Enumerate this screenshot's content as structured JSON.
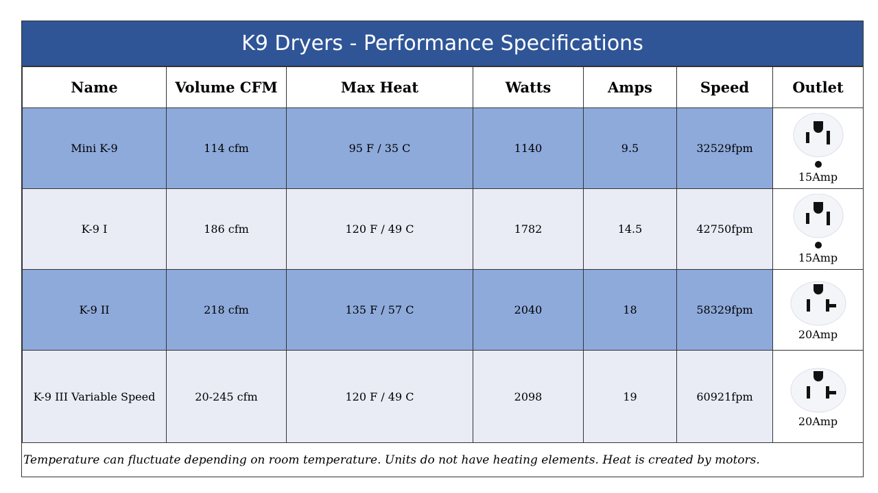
{
  "title": "K9 Dryers - Performance Specifications",
  "headers": [
    "Name",
    "Volume CFM",
    "Max Heat",
    "Watts",
    "Amps",
    "Speed",
    "Outlet"
  ],
  "rows": [
    {
      "name": "Mini K-9",
      "cfm": "114 cfm",
      "heat": "95 F / 35 C",
      "watts": "1140",
      "amps": "9.5",
      "speed": "32529fpm",
      "outlet": "15Amp",
      "outlet_icon": "15-amp-outlet-icon"
    },
    {
      "name": "K-9 I",
      "cfm": "186 cfm",
      "heat": "120 F / 49 C",
      "watts": "1782",
      "amps": "14.5",
      "speed": "42750fpm",
      "outlet": "15Amp",
      "outlet_icon": "15-amp-outlet-icon"
    },
    {
      "name": "K-9 II",
      "cfm": "218 cfm",
      "heat": "135 F / 57 C",
      "watts": "2040",
      "amps": "18",
      "speed": "58329fpm",
      "outlet": "20Amp",
      "outlet_icon": "20-amp-outlet-icon"
    },
    {
      "name": "K-9 III Variable Speed",
      "cfm": "20-245 cfm",
      "heat": "120 F / 49 C",
      "watts": "2098",
      "amps": "19",
      "speed": "60921fpm",
      "outlet": "20Amp",
      "outlet_icon": "20-amp-outlet-icon"
    }
  ],
  "footnote": "Temperature  can fluctuate depending  on room temperature.  Units do not have  heating  elements.  Heat is created by motors.",
  "colors": {
    "title_bg": "#2f5597",
    "row_dark": "#8eaadb",
    "row_light": "#e9ebf5"
  }
}
